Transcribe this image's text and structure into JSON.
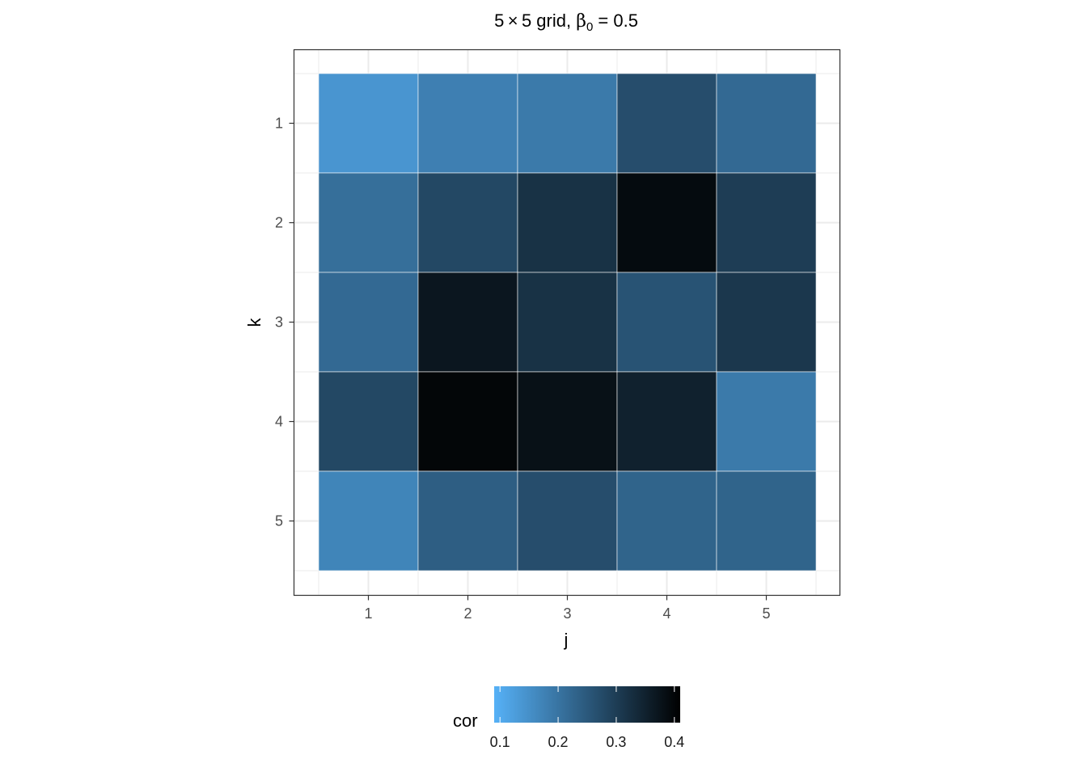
{
  "chart_data": {
    "type": "heatmap",
    "title": {
      "pre": "5 × 5 grid, ",
      "beta": "β",
      "sub": "0",
      "post": " = 0.5"
    },
    "xlabel": "j",
    "ylabel": "k",
    "x_categories": [
      "1",
      "2",
      "3",
      "4",
      "5"
    ],
    "y_categories": [
      "1",
      "2",
      "3",
      "4",
      "5"
    ],
    "values": [
      [
        0.14,
        0.18,
        0.19,
        0.27,
        0.22
      ],
      [
        0.21,
        0.28,
        0.32,
        0.39,
        0.3
      ],
      [
        0.22,
        0.37,
        0.32,
        0.26,
        0.31
      ],
      [
        0.28,
        0.4,
        0.38,
        0.35,
        0.19
      ],
      [
        0.17,
        0.24,
        0.27,
        0.23,
        0.23
      ]
    ],
    "legend": {
      "title": "cor",
      "position": "bottom",
      "ticks": [
        0.1,
        0.2,
        0.3,
        0.4
      ],
      "tick_labels": [
        "0.1",
        "0.2",
        "0.3",
        "0.4"
      ],
      "range": [
        0.09,
        0.41
      ]
    },
    "colors": {
      "low": "#56B1F7",
      "high": "#000000",
      "grid": "#ebebeb",
      "tile_border": "#ffffff",
      "panel_border": "#333333",
      "tick_text": "#4d4d4d",
      "tick_mark": "#333333"
    },
    "theme": "bw",
    "grid": true
  }
}
